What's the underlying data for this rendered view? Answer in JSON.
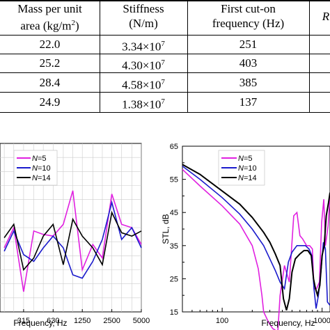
{
  "table": {
    "headers": {
      "col1": [
        "Mass per unit",
        "area (kg/m",
        "2",
        ")"
      ],
      "col2": [
        "Stiffness",
        "(N/m)"
      ],
      "col3": [
        "First cut-on",
        "frequency (Hz)"
      ],
      "col4": "R"
    },
    "rows": [
      {
        "mass": "22.0",
        "stiff_mant": "3.34×10",
        "stiff_exp": "7",
        "freq": "251"
      },
      {
        "mass": "25.2",
        "stiff_mant": "4.30×10",
        "stiff_exp": "7",
        "freq": "403"
      },
      {
        "mass": "28.4",
        "stiff_mant": "4.58×10",
        "stiff_exp": "7",
        "freq": "385"
      },
      {
        "mass": "24.9",
        "stiff_mant": "1.38×10",
        "stiff_exp": "7",
        "freq": "137"
      }
    ]
  },
  "chart_data": [
    {
      "type": "line",
      "xlabel": "Frequency, Hz",
      "x_ticks": [
        "315",
        "630",
        "1250",
        "2500",
        "5000"
      ],
      "legend": [
        "N=5",
        "N=10",
        "N=14"
      ],
      "colors": [
        "#e020e0",
        "#1a1acc",
        "#000000"
      ],
      "x": [
        200,
        250,
        315,
        400,
        500,
        630,
        800,
        1000,
        1250,
        1600,
        2000,
        2500,
        3150,
        4000,
        5000
      ],
      "series": [
        {
          "name": "N=5",
          "values": [
            0.62,
            0.5,
            0.88,
            0.52,
            0.54,
            0.55,
            0.48,
            0.28,
            0.75,
            0.6,
            0.68,
            0.3,
            0.48,
            0.5,
            0.6
          ]
        },
        {
          "name": "N=10",
          "values": [
            0.64,
            0.52,
            0.66,
            0.7,
            0.62,
            0.55,
            0.62,
            0.78,
            0.8,
            0.7,
            0.57,
            0.35,
            0.57,
            0.5,
            0.62
          ]
        },
        {
          "name": "N=14",
          "values": [
            0.56,
            0.48,
            0.75,
            0.68,
            0.55,
            0.48,
            0.72,
            0.45,
            0.55,
            0.62,
            0.72,
            0.41,
            0.53,
            0.55,
            0.52
          ]
        }
      ]
    },
    {
      "type": "line",
      "xlabel": "Frequency, Hz",
      "ylabel": "STL, dB",
      "y_ticks": [
        "15",
        "25",
        "35",
        "45",
        "55",
        "65"
      ],
      "ylim": [
        15,
        65
      ],
      "x_log": true,
      "xlim": [
        40,
        1200
      ],
      "x_tick_labels": [
        "100",
        "1000"
      ],
      "legend": [
        "N=5",
        "N=10",
        "N=14"
      ],
      "colors": [
        "#e020e0",
        "#1a1acc",
        "#000000"
      ],
      "series": [
        {
          "name": "N=5",
          "points": [
            [
              40,
              58
            ],
            [
              60,
              53
            ],
            [
              100,
              47
            ],
            [
              150,
              41.5
            ],
            [
              200,
              35
            ],
            [
              230,
              28
            ],
            [
              250,
              20
            ],
            [
              260,
              15
            ],
            [
              290,
              12
            ],
            [
              320,
              10
            ],
            [
              360,
              9
            ],
            [
              380,
              20
            ],
            [
              420,
              29
            ],
            [
              470,
              24
            ],
            [
              520,
              44
            ],
            [
              560,
              45
            ],
            [
              600,
              38
            ],
            [
              640,
              37
            ],
            [
              700,
              35
            ],
            [
              750,
              35
            ],
            [
              800,
              34
            ],
            [
              830,
              22
            ],
            [
              880,
              22
            ],
            [
              940,
              24
            ],
            [
              990,
              42
            ],
            [
              1040,
              49
            ],
            [
              1080,
              35
            ],
            [
              1150,
              41
            ],
            [
              1200,
              50
            ]
          ]
        },
        {
          "name": "N=10",
          "points": [
            [
              40,
              59
            ],
            [
              60,
              55
            ],
            [
              100,
              49.5
            ],
            [
              150,
              44.5
            ],
            [
              200,
              40
            ],
            [
              260,
              35
            ],
            [
              300,
              31
            ],
            [
              340,
              27.5
            ],
            [
              380,
              24
            ],
            [
              420,
              22
            ],
            [
              460,
              30
            ],
            [
              500,
              33
            ],
            [
              560,
              35
            ],
            [
              620,
              35
            ],
            [
              680,
              35
            ],
            [
              740,
              34
            ],
            [
              790,
              32
            ],
            [
              830,
              22
            ],
            [
              870,
              16
            ],
            [
              920,
              20
            ],
            [
              980,
              28
            ],
            [
              1030,
              36
            ],
            [
              1080,
              34
            ],
            [
              1130,
              18
            ],
            [
              1200,
              17
            ]
          ]
        },
        {
          "name": "N=14",
          "points": [
            [
              40,
              59.5
            ],
            [
              60,
              56.5
            ],
            [
              100,
              51.5
            ],
            [
              150,
              47.5
            ],
            [
              200,
              43.5
            ],
            [
              260,
              39
            ],
            [
              300,
              36
            ],
            [
              340,
              32.5
            ],
            [
              380,
              29
            ],
            [
              410,
              19
            ],
            [
              440,
              15.5
            ],
            [
              470,
              19
            ],
            [
              500,
              27
            ],
            [
              540,
              31
            ],
            [
              600,
              32.5
            ],
            [
              660,
              33.5
            ],
            [
              720,
              33.5
            ],
            [
              780,
              32
            ],
            [
              820,
              25
            ],
            [
              860,
              22
            ],
            [
              900,
              20
            ],
            [
              950,
              23
            ],
            [
              1000,
              32
            ],
            [
              1050,
              35
            ],
            [
              1100,
              44
            ],
            [
              1160,
              48
            ],
            [
              1200,
              51
            ]
          ]
        }
      ]
    }
  ]
}
